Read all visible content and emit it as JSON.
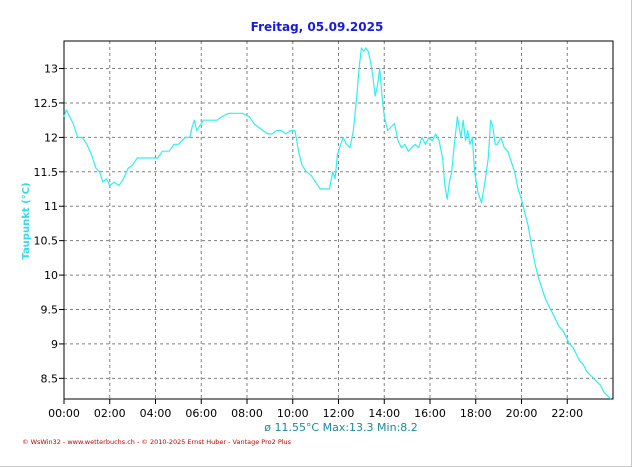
{
  "chart_data": {
    "type": "line",
    "title": "Freitag, 05.09.2025",
    "ylabel": "Taupunkt  (°C)",
    "xlabel": "",
    "ylim": [
      8.2,
      13.4
    ],
    "xlim": [
      0,
      24
    ],
    "grid": true,
    "x_tick_labels": [
      "00:00",
      "02:00",
      "04:00",
      "06:00",
      "08:00",
      "10:00",
      "12:00",
      "14:00",
      "16:00",
      "18:00",
      "20:00",
      "22:00"
    ],
    "y_tick_labels": [
      "8.5",
      "9",
      "9.5",
      "10",
      "10.5",
      "11",
      "11.5",
      "12",
      "12.5",
      "13"
    ],
    "stats_text": "ø 11.55°C  Max:13.3  Min:8.2",
    "footer_text": "© WsWin32 - www.wetterbuchs.ch - © 2010-2025 Ernst Huber - Vantage Pro2 Plus",
    "colors": {
      "line": "#33eef0",
      "title": "#1a1adc",
      "ylabel": "#38d8e8",
      "stats": "#1a8a9a",
      "footer": "#c00000",
      "grid": "#808080"
    },
    "series": [
      {
        "values": [
          [
            0.0,
            12.3
          ],
          [
            0.1,
            12.4
          ],
          [
            0.25,
            12.3
          ],
          [
            0.4,
            12.2
          ],
          [
            0.6,
            12.0
          ],
          [
            0.8,
            12.0
          ],
          [
            1.0,
            11.9
          ],
          [
            1.2,
            11.75
          ],
          [
            1.4,
            11.55
          ],
          [
            1.55,
            11.5
          ],
          [
            1.7,
            11.35
          ],
          [
            1.85,
            11.4
          ],
          [
            2.0,
            11.3
          ],
          [
            2.2,
            11.35
          ],
          [
            2.4,
            11.3
          ],
          [
            2.6,
            11.4
          ],
          [
            2.8,
            11.55
          ],
          [
            3.0,
            11.6
          ],
          [
            3.2,
            11.7
          ],
          [
            3.5,
            11.7
          ],
          [
            3.8,
            11.7
          ],
          [
            4.1,
            11.7
          ],
          [
            4.3,
            11.8
          ],
          [
            4.6,
            11.8
          ],
          [
            4.8,
            11.9
          ],
          [
            5.0,
            11.9
          ],
          [
            5.3,
            12.0
          ],
          [
            5.5,
            12.0
          ],
          [
            5.6,
            12.15
          ],
          [
            5.7,
            12.25
          ],
          [
            5.8,
            12.1
          ],
          [
            5.9,
            12.15
          ],
          [
            6.1,
            12.25
          ],
          [
            6.4,
            12.25
          ],
          [
            6.7,
            12.25
          ],
          [
            6.9,
            12.3
          ],
          [
            7.2,
            12.35
          ],
          [
            7.5,
            12.35
          ],
          [
            7.8,
            12.35
          ],
          [
            8.1,
            12.3
          ],
          [
            8.3,
            12.2
          ],
          [
            8.5,
            12.15
          ],
          [
            8.7,
            12.1
          ],
          [
            8.9,
            12.05
          ],
          [
            9.1,
            12.05
          ],
          [
            9.3,
            12.1
          ],
          [
            9.5,
            12.1
          ],
          [
            9.7,
            12.05
          ],
          [
            9.9,
            12.1
          ],
          [
            10.1,
            12.1
          ],
          [
            10.25,
            11.8
          ],
          [
            10.4,
            11.6
          ],
          [
            10.6,
            11.5
          ],
          [
            10.8,
            11.45
          ],
          [
            11.0,
            11.35
          ],
          [
            11.2,
            11.25
          ],
          [
            11.4,
            11.25
          ],
          [
            11.6,
            11.25
          ],
          [
            11.75,
            11.5
          ],
          [
            11.85,
            11.4
          ],
          [
            11.95,
            11.75
          ],
          [
            12.1,
            11.9
          ],
          [
            12.2,
            12.0
          ],
          [
            12.35,
            11.9
          ],
          [
            12.5,
            11.85
          ],
          [
            12.65,
            12.1
          ],
          [
            12.8,
            12.6
          ],
          [
            12.9,
            13.0
          ],
          [
            13.0,
            13.3
          ],
          [
            13.1,
            13.25
          ],
          [
            13.2,
            13.3
          ],
          [
            13.3,
            13.25
          ],
          [
            13.4,
            13.1
          ],
          [
            13.5,
            12.9
          ],
          [
            13.6,
            12.6
          ],
          [
            13.7,
            12.75
          ],
          [
            13.8,
            13.0
          ],
          [
            13.9,
            12.6
          ],
          [
            14.0,
            12.3
          ],
          [
            14.15,
            12.1
          ],
          [
            14.3,
            12.15
          ],
          [
            14.45,
            12.2
          ],
          [
            14.6,
            11.95
          ],
          [
            14.75,
            11.85
          ],
          [
            14.9,
            11.9
          ],
          [
            15.05,
            11.8
          ],
          [
            15.2,
            11.85
          ],
          [
            15.35,
            11.9
          ],
          [
            15.5,
            11.85
          ],
          [
            15.65,
            12.0
          ],
          [
            15.8,
            11.9
          ],
          [
            15.95,
            12.0
          ],
          [
            16.1,
            11.95
          ],
          [
            16.25,
            12.05
          ],
          [
            16.4,
            11.95
          ],
          [
            16.55,
            11.7
          ],
          [
            16.65,
            11.3
          ],
          [
            16.75,
            11.1
          ],
          [
            16.85,
            11.35
          ],
          [
            16.95,
            11.5
          ],
          [
            17.05,
            11.85
          ],
          [
            17.2,
            12.3
          ],
          [
            17.35,
            12.0
          ],
          [
            17.45,
            12.25
          ],
          [
            17.55,
            11.95
          ],
          [
            17.65,
            12.1
          ],
          [
            17.75,
            11.9
          ],
          [
            17.85,
            12.0
          ],
          [
            17.95,
            11.5
          ],
          [
            18.1,
            11.2
          ],
          [
            18.25,
            11.05
          ],
          [
            18.4,
            11.35
          ],
          [
            18.55,
            11.7
          ],
          [
            18.65,
            12.25
          ],
          [
            18.75,
            12.15
          ],
          [
            18.85,
            11.9
          ],
          [
            18.95,
            11.9
          ],
          [
            19.1,
            12.0
          ],
          [
            19.25,
            11.85
          ],
          [
            19.4,
            11.8
          ],
          [
            19.55,
            11.65
          ],
          [
            19.7,
            11.5
          ],
          [
            19.85,
            11.25
          ],
          [
            20.0,
            11.1
          ],
          [
            20.15,
            10.9
          ],
          [
            20.3,
            10.7
          ],
          [
            20.45,
            10.4
          ],
          [
            20.6,
            10.15
          ],
          [
            20.75,
            9.95
          ],
          [
            20.9,
            9.8
          ],
          [
            21.05,
            9.65
          ],
          [
            21.2,
            9.55
          ],
          [
            21.35,
            9.45
          ],
          [
            21.5,
            9.35
          ],
          [
            21.65,
            9.25
          ],
          [
            21.8,
            9.2
          ],
          [
            21.95,
            9.1
          ],
          [
            22.1,
            9.0
          ],
          [
            22.25,
            8.95
          ],
          [
            22.4,
            8.85
          ],
          [
            22.55,
            8.75
          ],
          [
            22.7,
            8.7
          ],
          [
            22.85,
            8.6
          ],
          [
            23.0,
            8.55
          ],
          [
            23.15,
            8.5
          ],
          [
            23.3,
            8.45
          ],
          [
            23.45,
            8.4
          ],
          [
            23.6,
            8.3
          ],
          [
            23.75,
            8.25
          ],
          [
            23.9,
            8.2
          ]
        ]
      }
    ]
  }
}
